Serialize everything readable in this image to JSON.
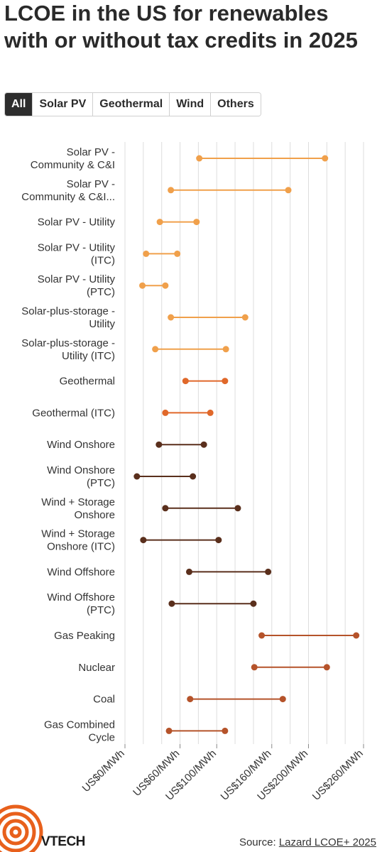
{
  "title": "LCOE in the US for renewables with or without tax credits in 2025",
  "tabs": [
    {
      "label": "All",
      "active": true
    },
    {
      "label": "Solar PV",
      "active": false
    },
    {
      "label": "Geothermal",
      "active": false
    },
    {
      "label": "Wind",
      "active": false
    },
    {
      "label": "Others",
      "active": false
    }
  ],
  "source": {
    "prefix": "Source: ",
    "link": "Lazard LCOE+ 2025"
  },
  "logo": {
    "text": "VTECH",
    "color": "#e8601c"
  },
  "colors": {
    "solar": "#f0a04b",
    "geothermal": "#e0682a",
    "wind": "#5a2f1c",
    "others": "#b5532a",
    "grid": "#dddddd"
  },
  "chart_data": {
    "type": "dumbbell",
    "x_ticks": [
      {
        "value": 0,
        "label": "US$0/MWh"
      },
      {
        "value": 60,
        "label": "US$60/MWh"
      },
      {
        "value": 100,
        "label": "US$100/MWh"
      },
      {
        "value": 160,
        "label": "US$160/MWh"
      },
      {
        "value": 200,
        "label": "US$200/MWh"
      },
      {
        "value": 260,
        "label": "US$260/MWh"
      }
    ],
    "xlim": [
      0,
      260
    ],
    "grid_step": 20,
    "rows": [
      {
        "label": [
          "Solar PV -",
          "Community & C&I"
        ],
        "min": 81,
        "max": 218,
        "group": "solar"
      },
      {
        "label": [
          "Solar PV -",
          "Community & C&I..."
        ],
        "min": 50,
        "max": 178,
        "group": "solar"
      },
      {
        "label": [
          "Solar PV - Utility"
        ],
        "min": 38,
        "max": 78,
        "group": "solar"
      },
      {
        "label": [
          "Solar PV - Utility",
          "(ITC)"
        ],
        "min": 23,
        "max": 57,
        "group": "solar"
      },
      {
        "label": [
          "Solar PV - Utility",
          "(PTC)"
        ],
        "min": 19,
        "max": 44,
        "group": "solar"
      },
      {
        "label": [
          "Solar-plus-storage -",
          "Utility"
        ],
        "min": 50,
        "max": 131,
        "group": "solar"
      },
      {
        "label": [
          "Solar-plus-storage -",
          "Utility (ITC)"
        ],
        "min": 33,
        "max": 110,
        "group": "solar"
      },
      {
        "label": [
          "Geothermal"
        ],
        "min": 66,
        "max": 109,
        "group": "geothermal"
      },
      {
        "label": [
          "Geothermal (ITC)"
        ],
        "min": 44,
        "max": 93,
        "group": "geothermal"
      },
      {
        "label": [
          "Wind Onshore"
        ],
        "min": 37,
        "max": 86,
        "group": "wind"
      },
      {
        "label": [
          "Wind Onshore",
          "(PTC)"
        ],
        "min": 13,
        "max": 74,
        "group": "wind"
      },
      {
        "label": [
          "Wind + Storage",
          "Onshore"
        ],
        "min": 44,
        "max": 123,
        "group": "wind"
      },
      {
        "label": [
          "Wind + Storage",
          "Onshore (ITC)"
        ],
        "min": 20,
        "max": 102,
        "group": "wind"
      },
      {
        "label": [
          "Wind Offshore"
        ],
        "min": 70,
        "max": 156,
        "group": "wind"
      },
      {
        "label": [
          "Wind Offshore",
          "(PTC)"
        ],
        "min": 51,
        "max": 140,
        "group": "wind"
      },
      {
        "label": [
          "Gas Peaking"
        ],
        "min": 149,
        "max": 252,
        "group": "others"
      },
      {
        "label": [
          "Nuclear"
        ],
        "min": 141,
        "max": 220,
        "group": "others"
      },
      {
        "label": [
          "Coal"
        ],
        "min": 71,
        "max": 172,
        "group": "others"
      },
      {
        "label": [
          "Gas Combined",
          "Cycle"
        ],
        "min": 48,
        "max": 109,
        "group": "others"
      }
    ]
  }
}
